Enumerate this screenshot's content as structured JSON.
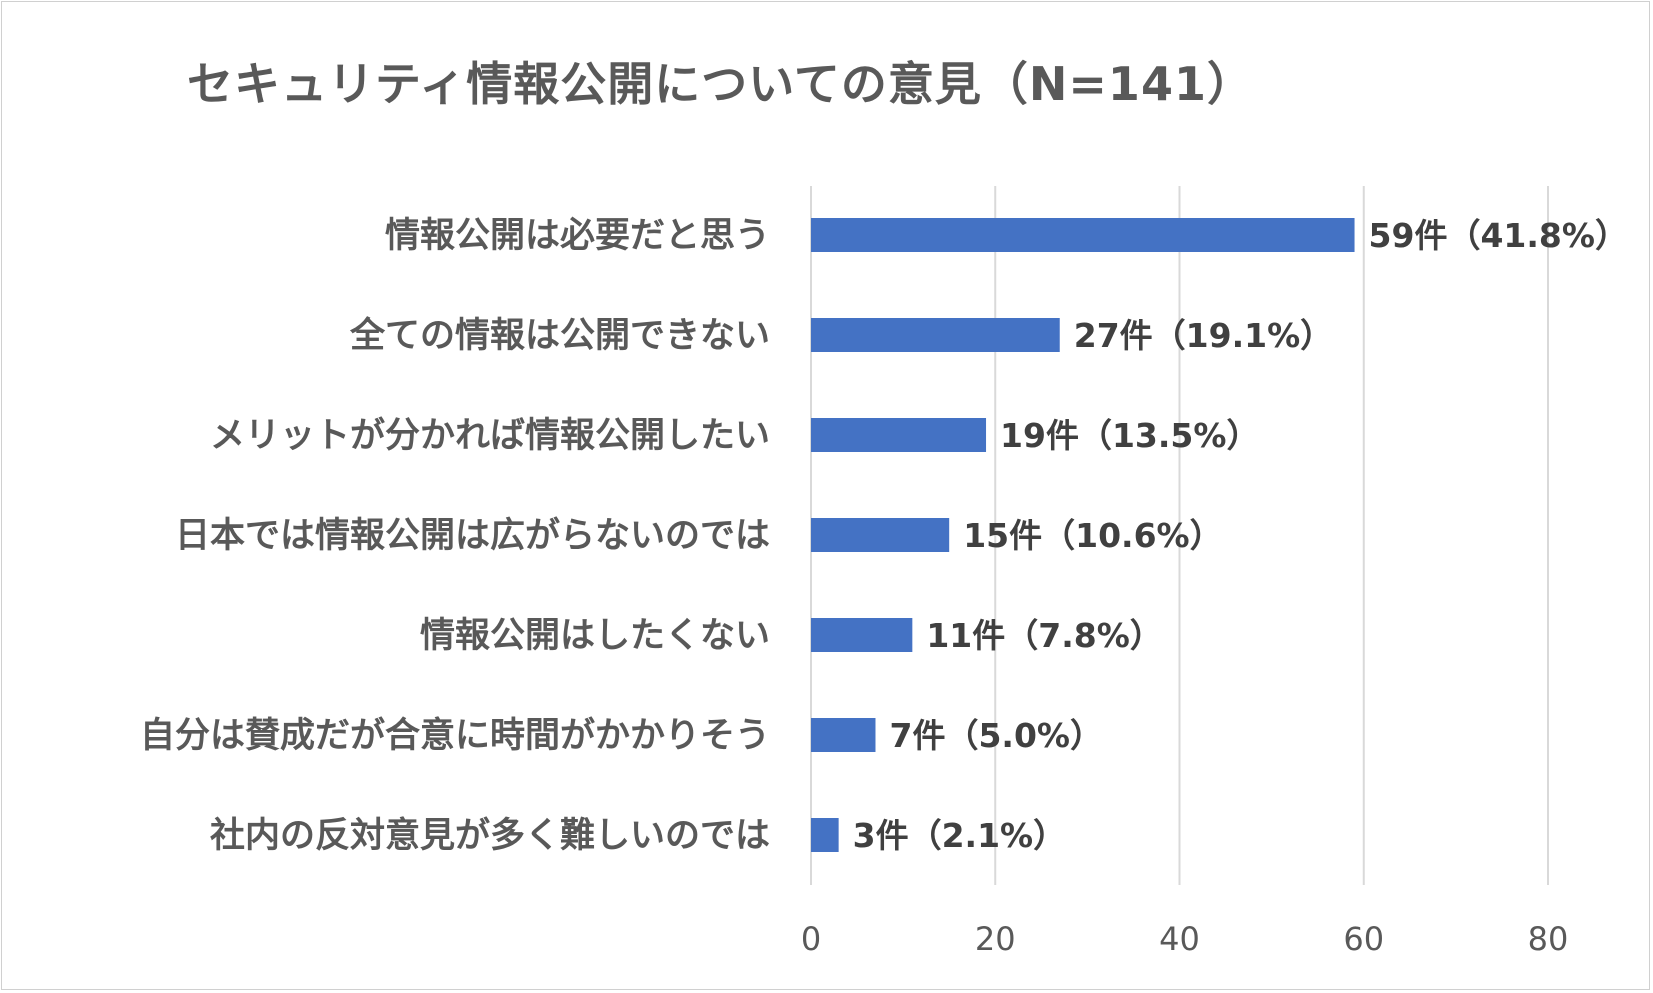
{
  "chart_data": {
    "type": "bar",
    "orientation": "horizontal",
    "title": "セキュリティ情報公開についての意見（N=141）",
    "categories": [
      "情報公開は必要だと思う",
      "全ての情報は公開できない",
      "メリットが分かれば情報公開したい",
      "日本では情報公開は広がらないのでは",
      "情報公開はしたくない",
      "自分は賛成だが合意に時間がかかりそう",
      "社内の反対意見が多く難しいのでは"
    ],
    "values": [
      59,
      27,
      19,
      15,
      11,
      7,
      3
    ],
    "data_labels": [
      "59件（41.8%）",
      "27件（19.1%）",
      "19件（13.5%）",
      "15件（10.6%）",
      "11件（7.8%）",
      "7件（5.0%）",
      "3件（2.1%）"
    ],
    "xlim": [
      0,
      80
    ],
    "xticks": [
      0,
      20,
      40,
      60,
      80
    ],
    "xticklabels": [
      "0",
      "20",
      "40",
      "60",
      "80"
    ],
    "grid": true,
    "bar_color": "#4472C4",
    "grid_color": "#D9D9D9"
  }
}
